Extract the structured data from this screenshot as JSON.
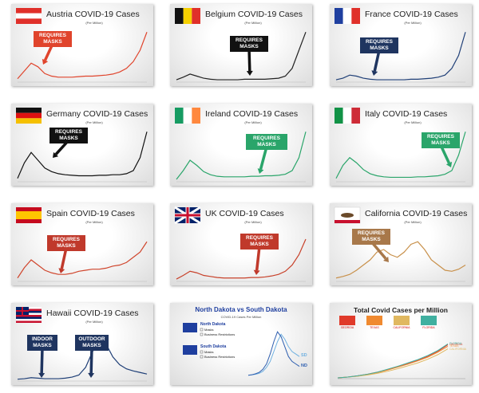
{
  "chart_data": [
    {
      "type": "line",
      "title": "Austria COVID-19 Cases",
      "subtitle": "(Per Million)",
      "ylim": [
        0,
        100
      ],
      "annotations": [
        {
          "text": "REQUIRES MASKS",
          "color": "#e0442c"
        }
      ],
      "series": [
        {
          "color": "#e0442c",
          "values": [
            5,
            20,
            35,
            28,
            15,
            10,
            8,
            8,
            8,
            9,
            10,
            10,
            11,
            12,
            14,
            18,
            25,
            38,
            60,
            95
          ]
        }
      ]
    },
    {
      "type": "line",
      "title": "Belgium COVID-19 Cases",
      "subtitle": "(Per Million)",
      "ylim": [
        0,
        100
      ],
      "annotations": [
        {
          "text": "REQUIRES MASKS",
          "color": "#111111"
        }
      ],
      "series": [
        {
          "color": "#222222",
          "values": [
            3,
            8,
            14,
            10,
            6,
            4,
            3,
            3,
            3,
            3,
            4,
            4,
            4,
            4,
            5,
            6,
            10,
            25,
            60,
            95
          ]
        }
      ]
    },
    {
      "type": "line",
      "title": "France COVID-19 Cases",
      "subtitle": "(Per Million)",
      "ylim": [
        0,
        100
      ],
      "annotations": [
        {
          "text": "REQUIRES MASKS",
          "color": "#1f3560"
        }
      ],
      "series": [
        {
          "color": "#1f3f77",
          "values": [
            3,
            6,
            12,
            10,
            6,
            4,
            3,
            3,
            3,
            3,
            3,
            4,
            4,
            5,
            6,
            8,
            12,
            25,
            50,
            95
          ]
        }
      ]
    },
    {
      "type": "line",
      "title": "Germany COVID-19 Cases",
      "subtitle": "(Per Million)",
      "ylim": [
        0,
        100
      ],
      "annotations": [
        {
          "text": "REQUIRES MASKS",
          "color": "#111111"
        }
      ],
      "series": [
        {
          "color": "#111111",
          "values": [
            5,
            35,
            55,
            40,
            25,
            18,
            14,
            12,
            11,
            10,
            10,
            10,
            11,
            11,
            12,
            12,
            14,
            20,
            45,
            95
          ]
        }
      ]
    },
    {
      "type": "line",
      "title": "Ireland COVID-19 Cases",
      "subtitle": "(Per Million)",
      "ylim": [
        0,
        100
      ],
      "annotations": [
        {
          "text": "REQUIRES MASKS",
          "color": "#2aa56a"
        }
      ],
      "series": [
        {
          "color": "#2aa56a",
          "values": [
            3,
            20,
            40,
            30,
            18,
            12,
            9,
            8,
            8,
            8,
            8,
            9,
            9,
            10,
            10,
            11,
            13,
            20,
            45,
            95
          ]
        }
      ]
    },
    {
      "type": "line",
      "title": "Italy COVID-19 Cases",
      "subtitle": "(Per Million)",
      "ylim": [
        0,
        100
      ],
      "annotations": [
        {
          "text": "REQUIRES MASKS",
          "color": "#2aa56a"
        }
      ],
      "series": [
        {
          "color": "#2aa56a",
          "values": [
            5,
            30,
            45,
            35,
            22,
            14,
            10,
            8,
            7,
            7,
            7,
            7,
            8,
            8,
            9,
            10,
            13,
            20,
            50,
            95
          ]
        }
      ]
    },
    {
      "type": "line",
      "title": "Spain COVID-19 Cases",
      "subtitle": "(Per Million)",
      "ylim": [
        0,
        100
      ],
      "annotations": [
        {
          "text": "REQUIRES MASKS",
          "color": "#c0392b"
        }
      ],
      "series": [
        {
          "color": "#d0452c",
          "values": [
            5,
            25,
            40,
            30,
            20,
            15,
            12,
            12,
            14,
            18,
            20,
            22,
            22,
            24,
            28,
            30,
            35,
            45,
            55,
            75
          ]
        }
      ]
    },
    {
      "type": "line",
      "title": "UK COVID-19 Cases",
      "subtitle": "(Per Million)",
      "ylim": [
        0,
        100
      ],
      "annotations": [
        {
          "text": "REQUIRES MASKS",
          "color": "#c0392b"
        }
      ],
      "series": [
        {
          "color": "#c8412a",
          "values": [
            3,
            10,
            18,
            15,
            10,
            8,
            6,
            5,
            5,
            5,
            5,
            6,
            6,
            7,
            9,
            12,
            18,
            30,
            50,
            80
          ]
        }
      ]
    },
    {
      "type": "line",
      "title": "California COVID-19 Cases",
      "subtitle": "(Per Million)",
      "ylim": [
        0,
        100
      ],
      "annotations": [
        {
          "text": "REQUIRES MASKS",
          "color": "#a8784a"
        }
      ],
      "series": [
        {
          "color": "#c8904a",
          "values": [
            5,
            8,
            12,
            20,
            30,
            40,
            55,
            60,
            50,
            45,
            55,
            70,
            75,
            60,
            40,
            30,
            20,
            18,
            22,
            30
          ]
        }
      ]
    },
    {
      "type": "line",
      "title": "Hawaii COVID-19 Cases",
      "subtitle": "(Per Million)",
      "ylim": [
        0,
        100
      ],
      "annotations": [
        {
          "text": "INDOOR MASKS",
          "color": "#1f3560"
        },
        {
          "text": "OUTDOOR MASKS",
          "color": "#1f3560"
        }
      ],
      "series": [
        {
          "color": "#1f3f77",
          "values": [
            2,
            3,
            5,
            4,
            3,
            3,
            3,
            4,
            6,
            10,
            25,
            55,
            75,
            70,
            45,
            30,
            22,
            18,
            15,
            12
          ]
        }
      ]
    },
    {
      "type": "line",
      "title": "North Dakota vs South Dakota",
      "subtitle": "COVID-19 Cases Per Million",
      "ylim": [
        0,
        100
      ],
      "legend_groups": [
        {
          "name": "North Dakota",
          "items": [
            "Masks",
            "Business Restrictions"
          ]
        },
        {
          "name": "South Dakota",
          "items": [
            "Masks",
            "Business Restrictions"
          ]
        }
      ],
      "series": [
        {
          "name": "SD",
          "color": "#6fb0e0",
          "values": [
            2,
            3,
            4,
            6,
            10,
            18,
            30,
            50,
            70,
            85,
            75,
            60,
            50,
            45,
            40
          ]
        },
        {
          "name": "ND",
          "color": "#2f5fb0",
          "values": [
            2,
            3,
            5,
            8,
            14,
            25,
            45,
            70,
            90,
            80,
            60,
            40,
            30,
            25,
            20
          ]
        }
      ]
    },
    {
      "type": "line",
      "title": "Total Covid Cases per Million",
      "ylim": [
        0,
        100
      ],
      "series": [
        {
          "name": "GEORGIA",
          "color": "#e03a2a",
          "values": [
            0,
            2,
            5,
            9,
            14,
            20,
            27,
            34,
            42,
            52,
            64,
            80
          ]
        },
        {
          "name": "TEXAS",
          "color": "#f08a30",
          "values": [
            0,
            2,
            4,
            8,
            13,
            19,
            26,
            33,
            41,
            50,
            62,
            76
          ]
        },
        {
          "name": "CALIFORNIA",
          "color": "#e0b860",
          "values": [
            0,
            2,
            4,
            7,
            11,
            16,
            22,
            29,
            36,
            45,
            56,
            70
          ]
        },
        {
          "name": "FLORIDA",
          "color": "#40b0a0",
          "values": [
            0,
            2,
            5,
            9,
            14,
            21,
            28,
            36,
            44,
            54,
            66,
            82
          ]
        }
      ]
    }
  ]
}
